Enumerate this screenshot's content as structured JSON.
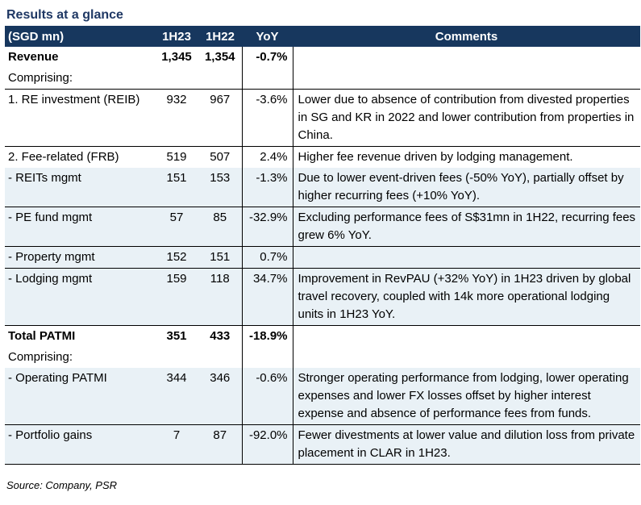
{
  "title": "Results at a glance",
  "headers": {
    "label": "(SGD mn)",
    "h23": "1H23",
    "h22": "1H22",
    "yoy": "YoY",
    "comments": "Comments"
  },
  "rows": [
    {
      "label": "Revenue",
      "h23": "1,345",
      "h22": "1,354",
      "yoy": "-0.7%",
      "comment": ""
    },
    {
      "label": "Comprising:",
      "h23": "",
      "h22": "",
      "yoy": "",
      "comment": ""
    },
    {
      "label": "1. RE investment (REIB)",
      "h23": "932",
      "h22": "967",
      "yoy": "-3.6%",
      "comment": "Lower due to absence of contribution from divested properties in SG and KR in 2022 and lower contribution from properties in China."
    },
    {
      "label": "2. Fee-related (FRB)",
      "h23": "519",
      "h22": "507",
      "yoy": "2.4%",
      "comment": "Higher fee revenue driven by lodging management."
    },
    {
      "label": " - REITs mgmt",
      "h23": "151",
      "h22": "153",
      "yoy": "-1.3%",
      "comment": "Due to lower event-driven fees (-50% YoY), partially offset by higher recurring fees (+10% YoY)."
    },
    {
      "label": " - PE fund mgmt",
      "h23": "57",
      "h22": "85",
      "yoy": "-32.9%",
      "comment": "Excluding performance fees of S$31mn in 1H22, recurring fees grew 6% YoY."
    },
    {
      "label": " - Property mgmt",
      "h23": "152",
      "h22": "151",
      "yoy": "0.7%",
      "comment": ""
    },
    {
      "label": " - Lodging mgmt",
      "h23": "159",
      "h22": "118",
      "yoy": "34.7%",
      "comment": "Improvement in RevPAU (+32% YoY) in 1H23 driven by global travel recovery, coupled with 14k more operational lodging units in 1H23 YoY."
    },
    {
      "label": "Total PATMI",
      "h23": "351",
      "h22": "433",
      "yoy": "-18.9%",
      "comment": ""
    },
    {
      "label": "Comprising:",
      "h23": "",
      "h22": "",
      "yoy": "",
      "comment": ""
    },
    {
      "label": " - Operating PATMI",
      "h23": "344",
      "h22": "346",
      "yoy": "-0.6%",
      "comment": "Stronger operating performance from lodging, lower operating expenses and lower FX losses offset by higher interest expense and absence of performance fees from funds."
    },
    {
      "label": " - Portfolio gains",
      "h23": "7",
      "h22": "87",
      "yoy": "-92.0%",
      "comment": "Fewer divestments at lower value and dilution loss from private placement in CLAR in 1H23."
    }
  ],
  "source": "Source: Company, PSR",
  "colors": {
    "header_bg": "#17375e",
    "shaded_bg": "#e9f1f6",
    "title": "#1f3864"
  }
}
